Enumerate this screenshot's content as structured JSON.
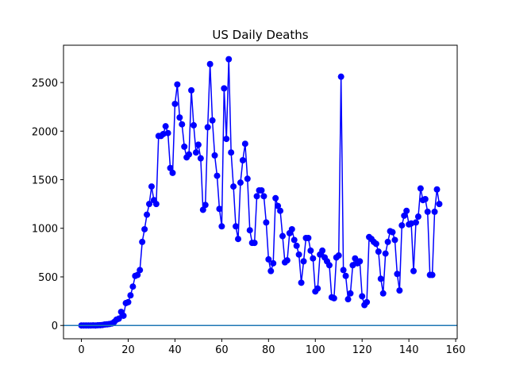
{
  "chart_data": {
    "type": "line",
    "title": "US Daily Deaths",
    "x": [
      0,
      1,
      2,
      3,
      4,
      5,
      6,
      7,
      8,
      9,
      10,
      11,
      12,
      13,
      14,
      15,
      16,
      17,
      18,
      19,
      20,
      21,
      22,
      23,
      24,
      25,
      26,
      27,
      28,
      29,
      30,
      31,
      32,
      33,
      34,
      35,
      36,
      37,
      38,
      39,
      40,
      41,
      42,
      43,
      44,
      45,
      46,
      47,
      48,
      49,
      50,
      51,
      52,
      53,
      54,
      55,
      56,
      57,
      58,
      59,
      60,
      61,
      62,
      63,
      64,
      65,
      66,
      67,
      68,
      69,
      70,
      71,
      72,
      73,
      74,
      75,
      76,
      77,
      78,
      79,
      80,
      81,
      82,
      83,
      84,
      85,
      86,
      87,
      88,
      89,
      90,
      91,
      92,
      93,
      94,
      95,
      96,
      97,
      98,
      99,
      100,
      101,
      102,
      103,
      104,
      105,
      106,
      107,
      108,
      109,
      110,
      111,
      112,
      113,
      114,
      115,
      116,
      117,
      118,
      119,
      120,
      121,
      122,
      123,
      124,
      125,
      126,
      127,
      128,
      129,
      130,
      131,
      132,
      133,
      134,
      135,
      136,
      137,
      138,
      139,
      140,
      141,
      142,
      143,
      144,
      145,
      146,
      147,
      148,
      149,
      150,
      151,
      152,
      153
    ],
    "series": [
      {
        "color": "#0000ff",
        "values": [
          0,
          0,
          0,
          0,
          0,
          1,
          0,
          2,
          3,
          5,
          10,
          12,
          15,
          20,
          35,
          60,
          70,
          140,
          100,
          230,
          240,
          310,
          400,
          510,
          520,
          570,
          860,
          990,
          1140,
          1250,
          1430,
          1290,
          1250,
          1950,
          1950,
          1970,
          2050,
          1980,
          1620,
          1570,
          2280,
          2480,
          2140,
          2070,
          1840,
          1730,
          1760,
          2420,
          2060,
          1780,
          1860,
          1720,
          1190,
          1240,
          2040,
          2690,
          2110,
          1750,
          1540,
          1200,
          1020,
          2440,
          1920,
          2740,
          1780,
          1430,
          1020,
          890,
          1470,
          1700,
          1870,
          1510,
          980,
          850,
          850,
          1330,
          1390,
          1390,
          1330,
          1060,
          680,
          560,
          640,
          1310,
          1230,
          1180,
          920,
          650,
          670,
          950,
          990,
          880,
          820,
          730,
          440,
          660,
          900,
          900,
          770,
          690,
          350,
          380,
          730,
          770,
          700,
          660,
          620,
          290,
          280,
          700,
          720,
          2560,
          570,
          510,
          270,
          330,
          620,
          690,
          640,
          660,
          300,
          210,
          240,
          910,
          890,
          860,
          840,
          760,
          480,
          330,
          740,
          860,
          970,
          960,
          880,
          530,
          360,
          1030,
          1130,
          1180,
          1040,
          1050,
          560,
          1060,
          1120,
          1410,
          1290,
          1300,
          1170,
          520,
          520,
          1170,
          1400,
          1250
        ]
      }
    ],
    "hlines": [
      0
    ],
    "hline_color": "#1f77b4",
    "xlim": [
      -7.65,
      160.65
    ],
    "ylim": [
      -137,
      2884
    ],
    "xticks": [
      0,
      20,
      40,
      60,
      80,
      100,
      120,
      140,
      160
    ],
    "yticks": [
      0,
      500,
      1000,
      1500,
      2000,
      2500
    ]
  }
}
